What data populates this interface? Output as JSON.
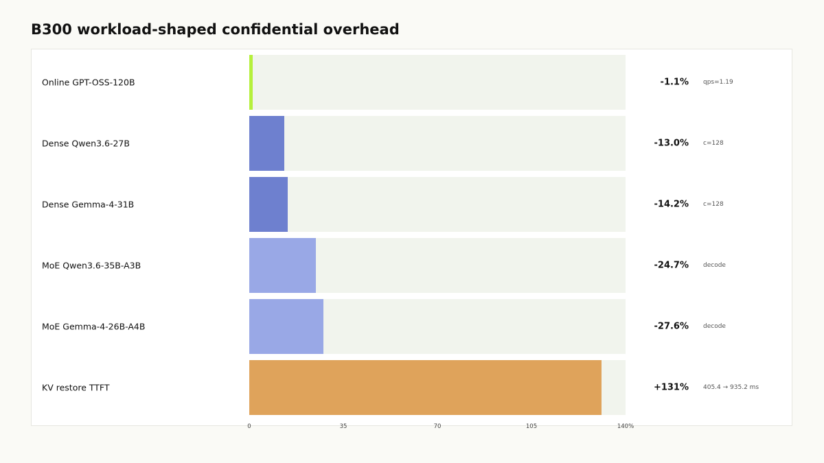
{
  "chart_data": {
    "type": "bar",
    "orientation": "horizontal",
    "title": "B300 workload-shaped confidential overhead",
    "xlim": [
      0,
      140
    ],
    "x_ticks": [
      "0",
      "35",
      "70",
      "105",
      "140%"
    ],
    "rows": [
      {
        "label": "Online GPT-OSS-120B",
        "value": -1.1,
        "value_label": "-1.1%",
        "note": "qps=1.19",
        "color": "#b5f03c"
      },
      {
        "label": "Dense Qwen3.6-27B",
        "value": -13.0,
        "value_label": "-13.0%",
        "note": "c=128",
        "color": "#6e80cf"
      },
      {
        "label": "Dense Gemma-4-31B",
        "value": -14.2,
        "value_label": "-14.2%",
        "note": "c=128",
        "color": "#6e80cf"
      },
      {
        "label": "MoE Qwen3.6-35B-A3B",
        "value": -24.7,
        "value_label": "-24.7%",
        "note": "decode",
        "color": "#99a8e6"
      },
      {
        "label": "MoE Gemma-4-26B-A4B",
        "value": -27.6,
        "value_label": "-27.6%",
        "note": "decode",
        "color": "#99a8e6"
      },
      {
        "label": "KV restore TTFT",
        "value": 131,
        "value_label": "+131%",
        "note": "405.4 → 935.2 ms",
        "color": "#dfa35b"
      }
    ]
  }
}
